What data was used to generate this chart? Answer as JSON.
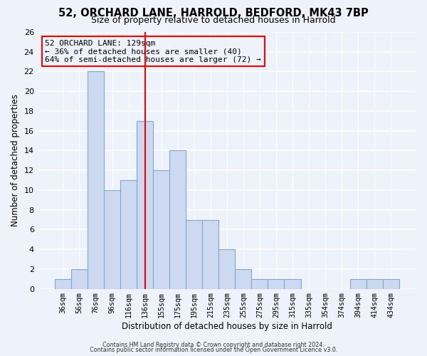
{
  "title1": "52, ORCHARD LANE, HARROLD, BEDFORD, MK43 7BP",
  "title2": "Size of property relative to detached houses in Harrold",
  "xlabel": "Distribution of detached houses by size in Harrold",
  "ylabel": "Number of detached properties",
  "bar_labels": [
    "36sqm",
    "56sqm",
    "76sqm",
    "96sqm",
    "116sqm",
    "136sqm",
    "155sqm",
    "175sqm",
    "195sqm",
    "215sqm",
    "235sqm",
    "255sqm",
    "275sqm",
    "295sqm",
    "315sqm",
    "335sqm",
    "354sqm",
    "374sqm",
    "394sqm",
    "414sqm",
    "434sqm"
  ],
  "bar_values": [
    1,
    2,
    22,
    10,
    11,
    17,
    12,
    14,
    7,
    7,
    4,
    2,
    1,
    1,
    1,
    0,
    0,
    0,
    1,
    1,
    1
  ],
  "bar_color": "#ccd9f0",
  "bar_edge_color": "#7aaad0",
  "vline_x": 5.0,
  "vline_color": "red",
  "annotation_line1": "52 ORCHARD LANE: 129sqm",
  "annotation_line2": "← 36% of detached houses are smaller (40)",
  "annotation_line3": "64% of semi-detached houses are larger (72) →",
  "box_edge_color": "red",
  "ylim": [
    0,
    26
  ],
  "yticks": [
    0,
    2,
    4,
    6,
    8,
    10,
    12,
    14,
    16,
    18,
    20,
    22,
    24,
    26
  ],
  "footer1": "Contains HM Land Registry data © Crown copyright and database right 2024.",
  "footer2": "Contains public sector information licensed under the Open Government Licence v3.0.",
  "background_color": "#eef2fa",
  "title1_fontsize": 10.5,
  "title2_fontsize": 9,
  "xlabel_fontsize": 8.5,
  "ylabel_fontsize": 8.5,
  "annotation_fontsize": 8,
  "footer_fontsize": 5.8
}
